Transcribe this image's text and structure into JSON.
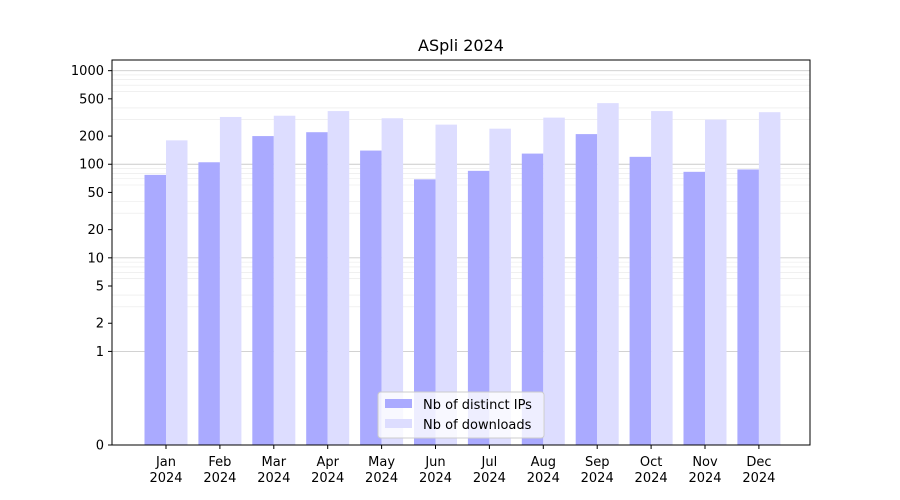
{
  "chart_data": {
    "type": "bar",
    "title": "ASpli 2024",
    "xlabel": "",
    "ylabel": "",
    "scale": "symlog",
    "ylim": [
      0,
      1300
    ],
    "yticks": [
      0,
      1,
      2,
      5,
      10,
      20,
      50,
      100,
      200,
      500,
      1000
    ],
    "grid": true,
    "legend_position": "bottom-center",
    "categories": [
      [
        "Jan",
        "2024"
      ],
      [
        "Feb",
        "2024"
      ],
      [
        "Mar",
        "2024"
      ],
      [
        "Apr",
        "2024"
      ],
      [
        "May",
        "2024"
      ],
      [
        "Jun",
        "2024"
      ],
      [
        "Jul",
        "2024"
      ],
      [
        "Aug",
        "2024"
      ],
      [
        "Sep",
        "2024"
      ],
      [
        "Oct",
        "2024"
      ],
      [
        "Nov",
        "2024"
      ],
      [
        "Dec",
        "2024"
      ]
    ],
    "series": [
      {
        "name": "Nb of distinct IPs",
        "color": "#aaaaff",
        "values": [
          77,
          105,
          200,
          220,
          140,
          69,
          85,
          130,
          210,
          120,
          83,
          88
        ]
      },
      {
        "name": "Nb of downloads",
        "color": "#ddddff",
        "values": [
          180,
          320,
          330,
          370,
          310,
          265,
          240,
          315,
          450,
          370,
          300,
          360
        ]
      }
    ]
  }
}
